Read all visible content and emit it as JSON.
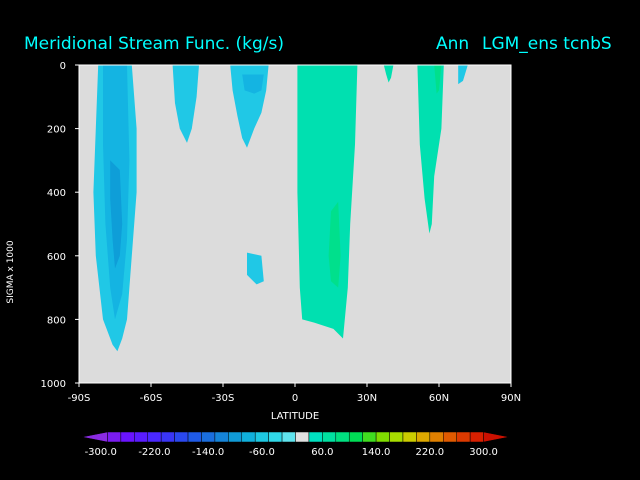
{
  "header": {
    "title": "Meridional Stream Func.  (kg/s)",
    "season": "Ann",
    "case": "LGM_ens tcnbS"
  },
  "chart_data": {
    "type": "heatmap",
    "title": "Meridional Stream Func.  (kg/s)",
    "xlabel": "LATITUDE",
    "ylabel": "SIGMA x 1000",
    "xlim": [
      -90,
      90
    ],
    "ylim": [
      1000,
      0
    ],
    "x_ticks": [
      -90,
      -60,
      -30,
      0,
      30,
      60,
      90
    ],
    "x_tick_labels": [
      "-90S",
      "-60S",
      "-30S",
      "0",
      "30N",
      "60N",
      "90N"
    ],
    "y_ticks": [
      0,
      200,
      400,
      600,
      800,
      1000
    ],
    "y_tick_labels": [
      "0",
      "200",
      "400",
      "600",
      "800",
      "1000"
    ],
    "background_color": "#dcdcdc",
    "colorbar": {
      "levels": [
        -300,
        -280,
        -260,
        -240,
        -220,
        -200,
        -180,
        -160,
        -140,
        -120,
        -100,
        -80,
        -60,
        -40,
        -20,
        20,
        40,
        60,
        80,
        100,
        120,
        140,
        160,
        180,
        200,
        220,
        240,
        260,
        280,
        300
      ],
      "tick_values": [
        -300,
        -220,
        -140,
        -60,
        60,
        140,
        220,
        300
      ],
      "tick_labels": [
        "-300.0",
        "-220.0",
        "-140.0",
        "-60.0",
        "60.0",
        "140.0",
        "220.0",
        "300.0"
      ],
      "colors": [
        "#8a2be2",
        "#7a1cf0",
        "#6a14ff",
        "#5a1cff",
        "#4a28ff",
        "#3a36f5",
        "#2a48ee",
        "#1f5ae6",
        "#1a6ede",
        "#1584d8",
        "#109ad6",
        "#10b0dc",
        "#1ec8e2",
        "#30d8e8",
        "#60e4ee",
        "#e0e0e0",
        "#00e0c0",
        "#00e0a0",
        "#00e080",
        "#00dd55",
        "#40dd20",
        "#80dd00",
        "#a8dd00",
        "#cccc00",
        "#dda800",
        "#e08000",
        "#e05a00",
        "#dd3a00",
        "#d82000",
        "#cc1000"
      ]
    },
    "regions": [
      {
        "value": -40,
        "color": "#20c8e6",
        "points": [
          [
            -82,
            0
          ],
          [
            -68,
            0
          ],
          [
            -66,
            200
          ],
          [
            -66,
            400
          ],
          [
            -68,
            600
          ],
          [
            -70,
            800
          ],
          [
            -72,
            860
          ],
          [
            -74,
            900
          ],
          [
            -76,
            880
          ],
          [
            -80,
            800
          ],
          [
            -83,
            600
          ],
          [
            -84,
            400
          ],
          [
            -83,
            200
          ]
        ]
      },
      {
        "value": -60,
        "color": "#14b4e2",
        "points": [
          [
            -80,
            0
          ],
          [
            -70,
            0
          ],
          [
            -69,
            300
          ],
          [
            -70,
            550
          ],
          [
            -72,
            720
          ],
          [
            -75,
            800
          ],
          [
            -77,
            700
          ],
          [
            -79,
            500
          ],
          [
            -80,
            250
          ]
        ]
      },
      {
        "value": -80,
        "color": "#0e9ed8",
        "points": [
          [
            -77,
            300
          ],
          [
            -73,
            330
          ],
          [
            -72,
            500
          ],
          [
            -73,
            600
          ],
          [
            -75,
            640
          ],
          [
            -76,
            550
          ],
          [
            -77,
            420
          ]
        ]
      },
      {
        "value": -40,
        "color": "#20c8e6",
        "points": [
          [
            -51,
            0
          ],
          [
            -40,
            0
          ],
          [
            -41,
            100
          ],
          [
            -43,
            200
          ],
          [
            -45,
            245
          ],
          [
            -48,
            200
          ],
          [
            -50,
            120
          ]
        ]
      },
      {
        "value": -40,
        "color": "#20c8e6",
        "points": [
          [
            -27,
            0
          ],
          [
            -11,
            0
          ],
          [
            -12,
            80
          ],
          [
            -14,
            150
          ],
          [
            -17,
            200
          ],
          [
            -20,
            260
          ],
          [
            -22,
            230
          ],
          [
            -24,
            160
          ],
          [
            -26,
            80
          ]
        ]
      },
      {
        "value": -60,
        "color": "#14b4e2",
        "points": [
          [
            -22,
            30
          ],
          [
            -13,
            30
          ],
          [
            -14,
            80
          ],
          [
            -17,
            90
          ],
          [
            -21,
            80
          ]
        ]
      },
      {
        "value": -40,
        "color": "#20c8e6",
        "points": [
          [
            -20,
            590
          ],
          [
            -14,
            600
          ],
          [
            -13,
            680
          ],
          [
            -16,
            690
          ],
          [
            -20,
            660
          ]
        ]
      },
      {
        "value": 20,
        "color": "#00e0b0",
        "points": [
          [
            1,
            0
          ],
          [
            26,
            0
          ],
          [
            25,
            250
          ],
          [
            23,
            500
          ],
          [
            22,
            700
          ],
          [
            20,
            860
          ],
          [
            16,
            830
          ],
          [
            8,
            810
          ],
          [
            3,
            800
          ],
          [
            2,
            700
          ],
          [
            1,
            400
          ]
        ]
      },
      {
        "value": 40,
        "color": "#00e08c",
        "points": [
          [
            15,
            460
          ],
          [
            18,
            430
          ],
          [
            19,
            600
          ],
          [
            18,
            700
          ],
          [
            15,
            680
          ],
          [
            14,
            600
          ]
        ]
      },
      {
        "value": 20,
        "color": "#00e0b0",
        "points": [
          [
            37,
            0
          ],
          [
            41,
            0
          ],
          [
            40,
            40
          ],
          [
            39,
            55
          ],
          [
            38,
            30
          ]
        ]
      },
      {
        "value": 20,
        "color": "#00e0b0",
        "points": [
          [
            51,
            0
          ],
          [
            62,
            0
          ],
          [
            61,
            200
          ],
          [
            58,
            350
          ],
          [
            57,
            500
          ],
          [
            56,
            530
          ],
          [
            54,
            420
          ],
          [
            52,
            250
          ]
        ]
      },
      {
        "value": 40,
        "color": "#00e08c",
        "points": [
          [
            58,
            0
          ],
          [
            61,
            0
          ],
          [
            60,
            80
          ],
          [
            59,
            90
          ]
        ]
      },
      {
        "value": -40,
        "color": "#20c8e6",
        "points": [
          [
            68,
            0
          ],
          [
            72,
            0
          ],
          [
            70,
            50
          ],
          [
            68,
            60
          ]
        ]
      }
    ]
  }
}
